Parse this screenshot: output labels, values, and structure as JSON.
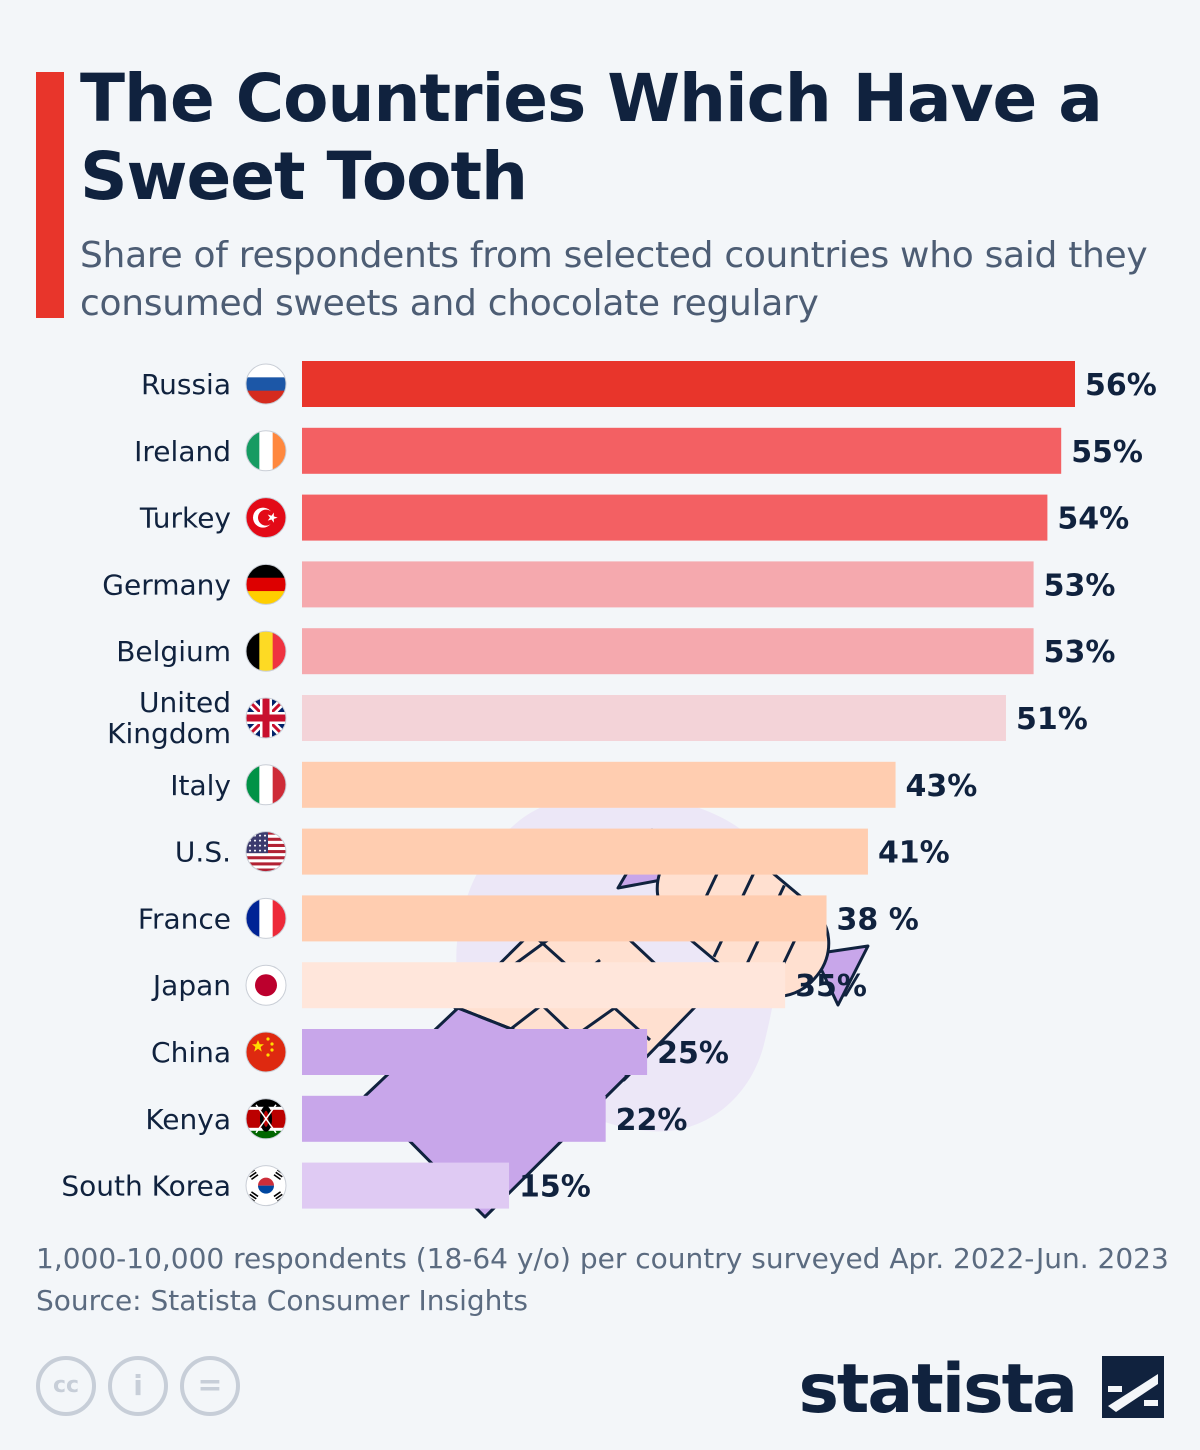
{
  "header": {
    "title": "The Countries Which Have a Sweet Tooth",
    "subtitle": "Share of respondents from selected countries who said they consumed sweets and chocolate regulary"
  },
  "chart_data": {
    "type": "bar",
    "orientation": "horizontal",
    "title": "The Countries Which Have a Sweet Tooth",
    "subtitle": "Share of respondents from selected countries who said they consumed sweets and chocolate regulary",
    "xlabel": "",
    "ylabel": "",
    "xlim": [
      0,
      56
    ],
    "grid": false,
    "categories": [
      "Russia",
      "Ireland",
      "Turkey",
      "Germany",
      "Belgium",
      "United Kingdom",
      "Italy",
      "U.S.",
      "France",
      "Japan",
      "China",
      "Kenya",
      "South Korea"
    ],
    "values": [
      56,
      55,
      54,
      53,
      53,
      51,
      43,
      41,
      38,
      35,
      25,
      22,
      15
    ],
    "value_labels": [
      "56%",
      "55%",
      "54%",
      "53%",
      "53%",
      "51%",
      "43%",
      "41%",
      "38 %",
      "35%",
      "25%",
      "22%",
      "15%"
    ],
    "bar_colors": [
      "#e8352b",
      "#f36063",
      "#f36063",
      "#f5a9ae",
      "#f5a9ae",
      "#f3d3d8",
      "#ffcdb0",
      "#ffcdb0",
      "#ffcdb0",
      "#ffe6db",
      "#c8a6ea",
      "#c8a6ea",
      "#dfcaf3"
    ],
    "flag_icons": [
      "russia-flag-icon",
      "ireland-flag-icon",
      "turkey-flag-icon",
      "germany-flag-icon",
      "belgium-flag-icon",
      "uk-flag-icon",
      "italy-flag-icon",
      "us-flag-icon",
      "france-flag-icon",
      "japan-flag-icon",
      "china-flag-icon",
      "kenya-flag-icon",
      "south-korea-flag-icon"
    ]
  },
  "footer": {
    "note": "1,000-10,000 respondents (18-64 y/o) per country surveyed Apr. 2022-Jun. 2023",
    "source": "Source: Statista Consumer Insights",
    "license_icons": [
      "cc-icon",
      "attribution-icon",
      "no-derivatives-icon"
    ],
    "license_glyphs": [
      "cc",
      "i",
      "="
    ],
    "brand": "statista"
  },
  "colors": {
    "accent": "#e8352b",
    "text_dark": "#10223e",
    "text_muted": "#4d5d74",
    "background": "#f3f6f9"
  }
}
